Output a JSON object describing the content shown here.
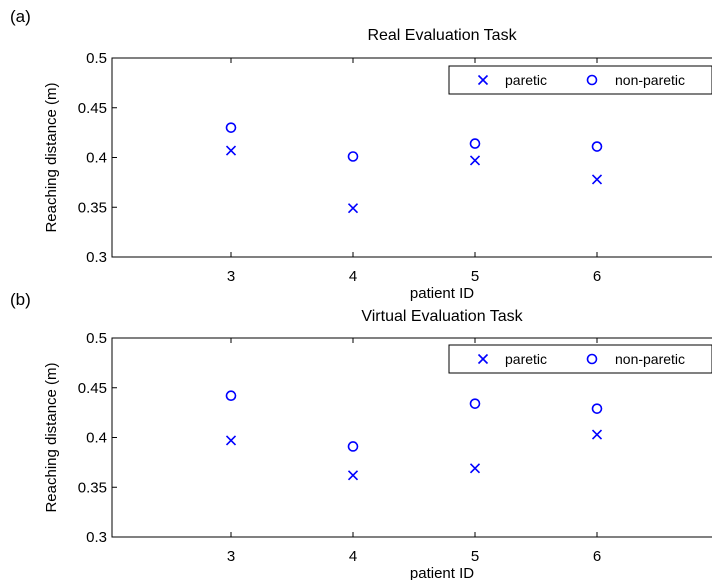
{
  "chart_data": [
    {
      "type": "scatter",
      "panel_label": "(a)",
      "title": "Real Evaluation Task",
      "xlabel": "patient ID",
      "ylabel": "Reaching distance (m)",
      "xticks": [
        "3",
        "4",
        "5",
        "6"
      ],
      "yticks": [
        "0.3",
        "0.35",
        "0.4",
        "0.45",
        "0.5"
      ],
      "ylim": [
        0.3,
        0.5
      ],
      "legend_position": "top-right",
      "series": [
        {
          "name": "paretic",
          "marker": "x",
          "color": "#0000ff",
          "x": [
            3,
            4,
            5,
            6
          ],
          "y": [
            0.407,
            0.349,
            0.397,
            0.378
          ]
        },
        {
          "name": "non-paretic",
          "marker": "o",
          "color": "#0000ff",
          "x": [
            3,
            4,
            5,
            6
          ],
          "y": [
            0.43,
            0.401,
            0.414,
            0.411
          ]
        }
      ]
    },
    {
      "type": "scatter",
      "panel_label": "(b)",
      "title": "Virtual Evaluation Task",
      "xlabel": "patient ID",
      "ylabel": "Reaching distance (m)",
      "xticks": [
        "3",
        "4",
        "5",
        "6"
      ],
      "yticks": [
        "0.3",
        "0.35",
        "0.4",
        "0.45",
        "0.5"
      ],
      "ylim": [
        0.3,
        0.5
      ],
      "legend_position": "top-right",
      "series": [
        {
          "name": "paretic",
          "marker": "x",
          "color": "#0000ff",
          "x": [
            3,
            4,
            5,
            6
          ],
          "y": [
            0.397,
            0.362,
            0.369,
            0.403
          ]
        },
        {
          "name": "non-paretic",
          "marker": "o",
          "color": "#0000ff",
          "x": [
            3,
            4,
            5,
            6
          ],
          "y": [
            0.442,
            0.391,
            0.434,
            0.429
          ]
        }
      ]
    }
  ]
}
